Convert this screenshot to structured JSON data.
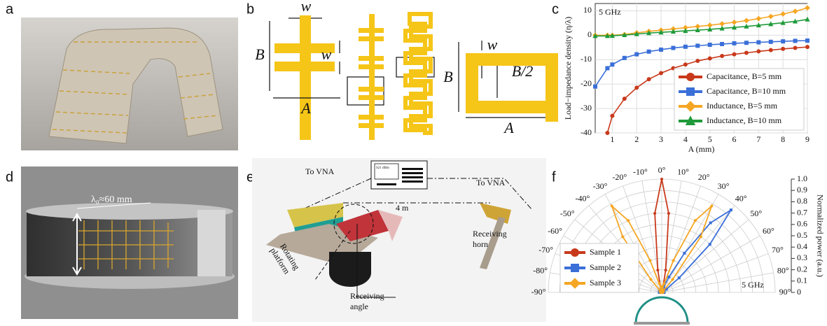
{
  "panel_labels": [
    "a",
    "b",
    "c",
    "d",
    "e",
    "f"
  ],
  "panel_b": {
    "labels": [
      "w",
      "B",
      "w",
      "A",
      "w",
      "B",
      "B/2",
      "A"
    ]
  },
  "panel_d": {
    "annotation": "λ₀≈60 mm"
  },
  "panel_e": {
    "vna_left": "To VNA",
    "vna_right": "To VNA",
    "distance": "4 m",
    "horn": [
      "Receiving",
      "horn"
    ],
    "platform": [
      "Rotating",
      "platform"
    ],
    "angle": [
      "Receiving",
      "angle"
    ],
    "screen": "S21 dBm"
  },
  "chart_data": [
    {
      "type": "line",
      "annotation": "5 GHz",
      "x_label": "A (mm)",
      "y_label": "Load−impedance  density (η/λ)",
      "x": [
        0.3,
        0.8,
        1,
        1.5,
        2,
        2.5,
        3,
        3.5,
        4,
        4.5,
        5,
        5.5,
        6,
        6.5,
        7,
        7.5,
        8,
        8.5,
        9
      ],
      "series": [
        {
          "name": "Capacitance, B=5 mm",
          "color": "#c8391b",
          "marker": "circle",
          "values": [
            null,
            -40,
            -33,
            -26,
            -21.5,
            -18,
            -15.5,
            -13.5,
            -12,
            -10.5,
            -9.5,
            -8.5,
            -7.8,
            -7.2,
            -6.6,
            -6.1,
            -5.6,
            -5.2,
            -4.8
          ]
        },
        {
          "name": "Capacitance, B=10 mm",
          "color": "#3a6fd8",
          "marker": "square",
          "values": [
            -21,
            -13.5,
            -12,
            -9.3,
            -7.8,
            -6.7,
            -5.9,
            -5.2,
            -4.7,
            -4.3,
            -3.9,
            -3.6,
            -3.3,
            -3.1,
            -2.9,
            -2.7,
            -2.5,
            -2.3,
            -2.2
          ]
        },
        {
          "name": "Inductance, B=5 mm",
          "color": "#f5a623",
          "marker": "diamond",
          "values": [
            0,
            0,
            0,
            0.3,
            1,
            1.6,
            2.1,
            2.6,
            3.1,
            3.6,
            4.1,
            4.7,
            5.3,
            6,
            6.8,
            7.7,
            8.7,
            9.8,
            11.2
          ]
        },
        {
          "name": "Inductance, B=10 mm",
          "color": "#1f9a3a",
          "marker": "triangle",
          "values": [
            -0.3,
            -0.3,
            -0.2,
            0.1,
            0.5,
            0.9,
            1.2,
            1.5,
            1.8,
            2.1,
            2.4,
            2.8,
            3.2,
            3.6,
            4.1,
            4.6,
            5.1,
            5.7,
            6.5
          ]
        }
      ],
      "xlim": [
        0.3,
        9
      ],
      "xticks": [
        1,
        2,
        3,
        4,
        5,
        6,
        7,
        8,
        9
      ],
      "ylim": [
        -40,
        13
      ],
      "yticks": [
        -40,
        -30,
        -20,
        -10,
        0,
        10
      ],
      "grid": true,
      "legend": "lower right"
    },
    {
      "type": "polar",
      "annotation": "5 GHz",
      "r_label": "Normalized power (a.u.)",
      "theta": [
        -90,
        -85,
        -80,
        -75,
        -70,
        -65,
        -60,
        -55,
        -50,
        -45,
        -40,
        -35,
        -30,
        -25,
        -20,
        -15,
        -10,
        -5,
        0,
        5,
        10,
        15,
        20,
        25,
        30,
        35,
        40,
        45,
        50,
        55,
        60,
        65,
        70,
        75,
        80,
        85,
        90
      ],
      "series": [
        {
          "name": "Sample 1",
          "color": "#c8391b",
          "marker": "circle",
          "values": [
            0.01,
            0.01,
            0.01,
            0.01,
            0.01,
            0.01,
            0.01,
            0.01,
            0.01,
            0.01,
            0.01,
            0.01,
            0.01,
            0.01,
            0.01,
            0.03,
            0.2,
            0.7,
            1.0,
            0.7,
            0.2,
            0.03,
            0.01,
            0.01,
            0.01,
            0.01,
            0.01,
            0.01,
            0.01,
            0.01,
            0.01,
            0.01,
            0.01,
            0.01,
            0.01,
            0.01,
            0.01
          ]
        },
        {
          "name": "Sample 2",
          "color": "#3a6fd8",
          "marker": "square",
          "values": [
            0.02,
            0.02,
            0.02,
            0.02,
            0.02,
            0.02,
            0.02,
            0.02,
            0.02,
            0.02,
            0.02,
            0.02,
            0.02,
            0.02,
            0.02,
            0.02,
            0.02,
            0.02,
            0.02,
            0.02,
            0.02,
            0.02,
            0.05,
            0.15,
            0.4,
            0.75,
            0.95,
            0.6,
            0.2,
            0.05,
            0.02,
            0.02,
            0.02,
            0.02,
            0.02,
            0.02,
            0.02
          ]
        },
        {
          "name": "Sample 3",
          "color": "#f5a623",
          "marker": "diamond",
          "values": [
            0.01,
            0.01,
            0.01,
            0.01,
            0.01,
            0.01,
            0.01,
            0.01,
            0.01,
            0.02,
            0.15,
            0.6,
            0.88,
            0.7,
            0.3,
            0.08,
            0.03,
            0.05,
            0.05,
            0.05,
            0.03,
            0.08,
            0.3,
            0.7,
            0.88,
            0.6,
            0.15,
            0.02,
            0.01,
            0.01,
            0.01,
            0.01,
            0.01,
            0.01,
            0.01,
            0.01,
            0.01
          ]
        }
      ],
      "thetalim": [
        -90,
        90
      ],
      "thetaticks": [
        {
          "value": -90,
          "label": "-90°"
        },
        {
          "value": -80,
          "label": "-80°"
        },
        {
          "value": -70,
          "label": "-70°"
        },
        {
          "value": -60,
          "label": "-60°"
        },
        {
          "value": -50,
          "label": "-50°"
        },
        {
          "value": -40,
          "label": "-40°"
        },
        {
          "value": -30,
          "label": "-30°"
        },
        {
          "value": -20,
          "label": "-20°"
        },
        {
          "value": -10,
          "label": "-10°"
        },
        {
          "value": 0,
          "label": "0°"
        },
        {
          "value": 10,
          "label": "10°"
        },
        {
          "value": 20,
          "label": "20°"
        },
        {
          "value": 30,
          "label": "30°"
        },
        {
          "value": 40,
          "label": "40°"
        },
        {
          "value": 50,
          "label": "50°"
        },
        {
          "value": 60,
          "label": "60°"
        },
        {
          "value": 70,
          "label": "70°"
        },
        {
          "value": 80,
          "label": "80°"
        },
        {
          "value": 90,
          "label": "90°"
        }
      ],
      "rlim": [
        0,
        1
      ],
      "rticks": [
        0,
        0.1,
        0.2,
        0.3,
        0.4,
        0.5,
        0.6,
        0.7,
        0.8,
        0.9,
        {
          "value": 1,
          "label": "1.0"
        }
      ],
      "grid": true,
      "legend": "lower left"
    }
  ]
}
